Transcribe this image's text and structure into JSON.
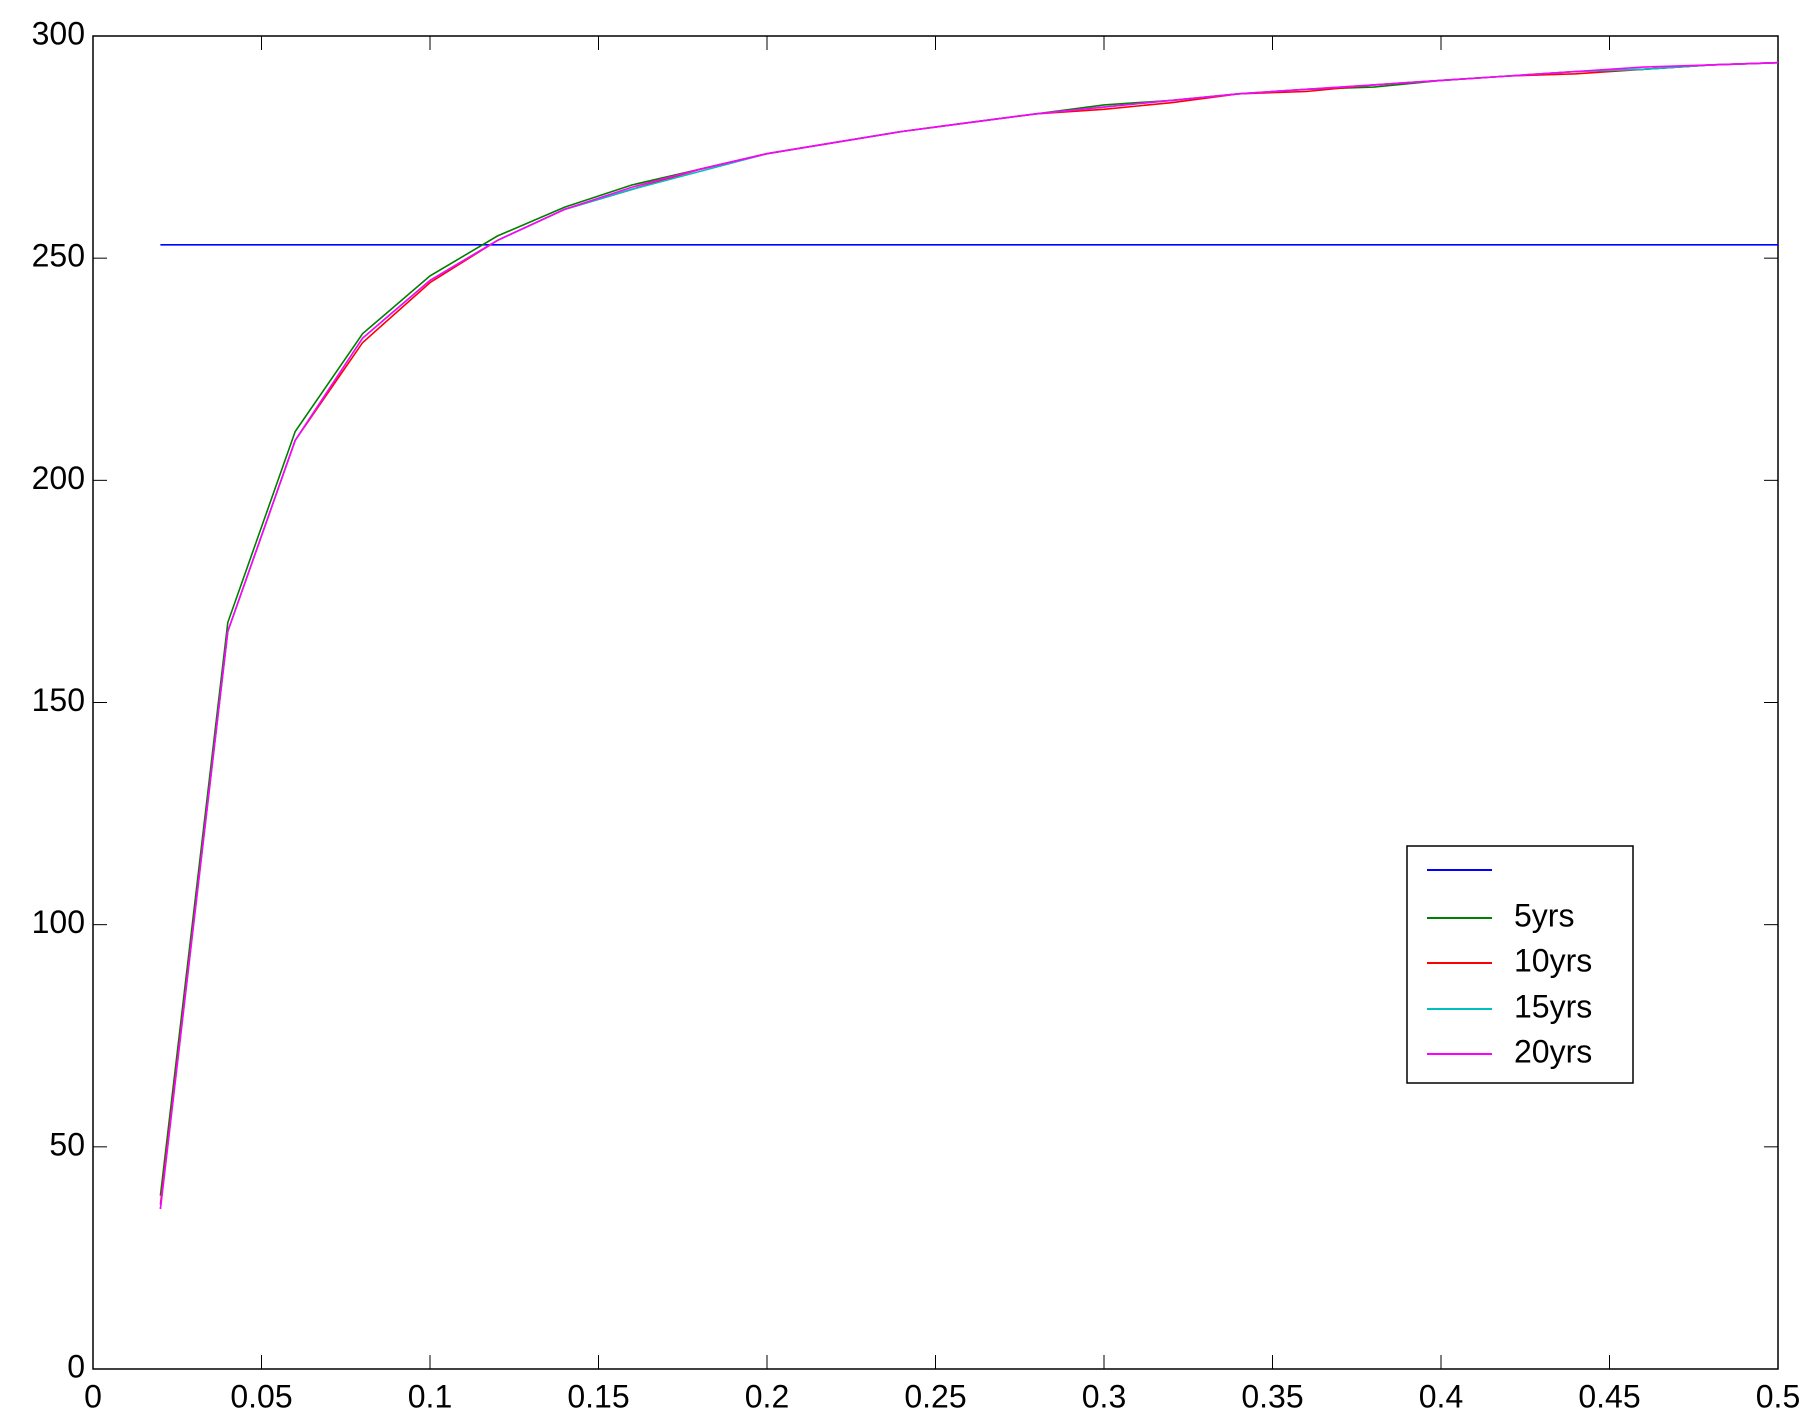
{
  "chart_data": {
    "type": "line",
    "x": [
      0.02,
      0.04,
      0.06,
      0.08,
      0.1,
      0.12,
      0.14,
      0.16,
      0.18,
      0.2,
      0.22,
      0.24,
      0.26,
      0.28,
      0.3,
      0.32,
      0.34,
      0.36,
      0.38,
      0.4,
      0.42,
      0.44,
      0.46,
      0.48,
      0.5
    ],
    "series": [
      {
        "color": "#0000ff",
        "values": [
          253,
          253,
          253,
          253,
          253,
          253,
          253,
          253,
          253,
          253,
          253,
          253,
          253,
          253,
          253,
          253,
          253,
          253,
          253,
          253,
          253,
          253,
          253,
          253,
          253
        ]
      },
      {
        "name": "5yrs",
        "color": "#008000",
        "values": [
          39,
          168,
          211,
          233,
          246,
          255,
          261.5,
          266.5,
          270,
          273.5,
          276,
          278.5,
          280.5,
          282.5,
          284.5,
          285.5,
          287,
          288,
          288.5,
          290,
          291,
          292,
          292.5,
          293.5,
          294
        ]
      },
      {
        "name": "10yrs",
        "color": "#ff0000",
        "values": [
          37,
          166,
          209,
          231,
          244.5,
          254,
          261,
          265.5,
          270,
          273.5,
          276,
          278.5,
          280.5,
          282.5,
          283.5,
          285,
          287,
          287.5,
          289,
          290,
          291,
          291.5,
          292.5,
          293.5,
          294
        ]
      },
      {
        "name": "15yrs",
        "color": "#00bfbf",
        "values": [
          36,
          166,
          209,
          232,
          245,
          254,
          261,
          265.5,
          269.5,
          273.5,
          276,
          278.5,
          280.5,
          282.5,
          284,
          285.5,
          287,
          288,
          289,
          290,
          291,
          292,
          292.5,
          293.5,
          294
        ]
      },
      {
        "name": "20yrs",
        "color": "#ff00ff",
        "values": [
          36,
          166,
          209,
          232,
          245,
          254,
          261,
          266,
          270,
          273.5,
          276,
          278.5,
          280.5,
          282.5,
          284,
          285.5,
          287,
          288,
          289,
          290,
          291,
          292,
          293,
          293.5,
          294
        ]
      }
    ],
    "xlim": [
      0,
      0.5
    ],
    "xticks": [
      0,
      0.05,
      0.1,
      0.15,
      0.2,
      0.25,
      0.3,
      0.35,
      0.4,
      0.45,
      0.5
    ],
    "ylim": [
      0,
      300
    ],
    "yticks": [
      0,
      50,
      100,
      150,
      200,
      250,
      300
    ],
    "grid": false,
    "legend": "lower right"
  }
}
